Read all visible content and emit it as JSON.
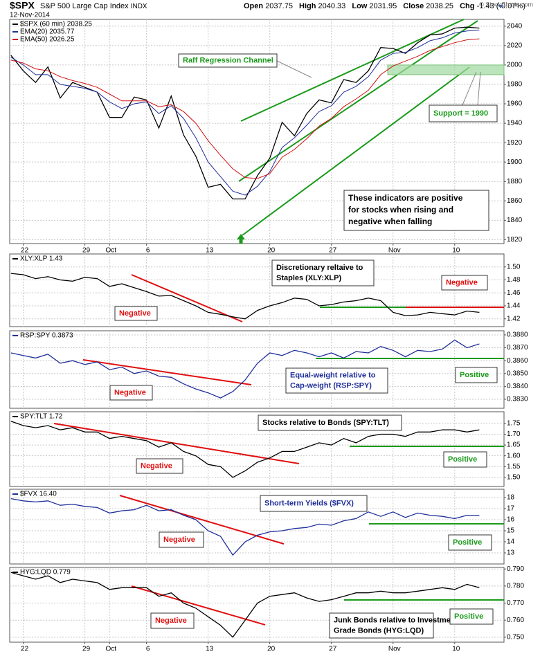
{
  "header": {
    "symbol": "$SPX",
    "name": "S&P 500 Large Cap Index",
    "exchange": "INDX",
    "date": "12-Nov-2014",
    "stats": [
      {
        "label": "Open",
        "value": 2037.75
      },
      {
        "label": "High",
        "value": 2040.33
      },
      {
        "label": "Low",
        "value": 2031.95
      },
      {
        "label": "Close",
        "value": 2038.25
      },
      {
        "label": "Chg",
        "value": "-1.43 (-0.07%)"
      }
    ],
    "credit": "© StockCharts.com"
  },
  "chart_data": [
    {
      "type": "line",
      "x": [
        -1,
        0,
        1,
        2,
        3,
        4,
        5,
        6,
        7,
        8,
        9,
        10,
        11,
        12,
        13,
        14,
        15,
        16,
        17,
        18,
        19,
        20,
        21,
        22,
        23,
        24,
        25,
        26,
        27,
        28,
        29,
        30,
        31,
        32,
        33,
        34,
        35,
        36,
        37
      ],
      "xlim": [
        -1.1,
        39
      ],
      "xticks": [
        {
          "value": 0,
          "label": "22"
        },
        {
          "value": 5,
          "label": "29"
        },
        {
          "value": 7,
          "label": "Oct"
        },
        {
          "value": 10,
          "label": "6"
        },
        {
          "value": 15,
          "label": "13"
        },
        {
          "value": 20,
          "label": "20"
        },
        {
          "value": 25,
          "label": "27"
        },
        {
          "value": 30,
          "label": "Nov"
        },
        {
          "value": 35,
          "label": "10"
        }
      ],
      "ylim": [
        1816,
        2047
      ],
      "yticks": [
        1820,
        1840,
        1860,
        1880,
        1900,
        1920,
        1940,
        1960,
        1980,
        2000,
        2020,
        2040
      ],
      "grid": true,
      "series": [
        {
          "name": "$SPX (60 min) 2038.25",
          "color": "#000000",
          "values": [
            2010,
            1994,
            1982,
            1998,
            1966,
            1982,
            1977,
            1972,
            1946,
            1946,
            1967,
            1964,
            1935,
            1968,
            1928,
            1906,
            1874,
            1877,
            1862,
            1862,
            1886,
            1904,
            1941,
            1927,
            1950,
            1964,
            1961,
            1985,
            1982,
            1994,
            2018,
            2017,
            2012,
            2023,
            2031,
            2032,
            2038,
            2039,
            2038
          ]
        },
        {
          "name": "EMA(20) 2035.77",
          "color": "#1f2f9a",
          "values": [
            2008,
            2000,
            1990,
            1990,
            1980,
            1978,
            1976,
            1972,
            1962,
            1955,
            1960,
            1962,
            1950,
            1958,
            1945,
            1925,
            1900,
            1885,
            1870,
            1866,
            1875,
            1890,
            1915,
            1925,
            1938,
            1952,
            1958,
            1972,
            1978,
            1988,
            2005,
            2012,
            2013,
            2018,
            2025,
            2028,
            2033,
            2035,
            2036
          ]
        },
        {
          "name": "EMA(50) 2026.25",
          "color": "#d01010",
          "values": [
            2005,
            2002,
            1996,
            1994,
            1988,
            1984,
            1981,
            1977,
            1970,
            1963,
            1963,
            1963,
            1957,
            1959,
            1952,
            1940,
            1922,
            1907,
            1893,
            1884,
            1883,
            1888,
            1905,
            1913,
            1924,
            1937,
            1945,
            1957,
            1965,
            1974,
            1990,
            1999,
            2004,
            2009,
            2015,
            2019,
            2023,
            2026,
            2027
          ]
        }
      ],
      "annotations": [
        [
          "Raff Regression Channel"
        ],
        [
          "Support = 1990"
        ],
        [
          "These indicators are positive",
          "for stocks when rising and",
          "negative when falling"
        ]
      ]
    },
    {
      "type": "line",
      "x": [
        -1,
        0,
        1,
        2,
        3,
        4,
        5,
        6,
        7,
        8,
        9,
        10,
        11,
        12,
        13,
        14,
        15,
        16,
        17,
        18,
        19,
        20,
        21,
        22,
        23,
        24,
        25,
        26,
        27,
        28,
        29,
        30,
        31,
        32,
        33,
        34,
        35,
        36,
        37
      ],
      "xlim": [
        -1.1,
        39
      ],
      "ylim": [
        1.408,
        1.52
      ],
      "yticks": [
        {
          "value": 1.42,
          "label": "1.42"
        },
        {
          "value": 1.44,
          "label": "1.44"
        },
        {
          "value": 1.46,
          "label": "1.46"
        },
        {
          "value": 1.48,
          "label": "1.48"
        },
        {
          "value": 1.5,
          "label": "1.50"
        }
      ],
      "grid": true,
      "series": [
        {
          "name": "XLY:XLP 1.43",
          "color": "#000000",
          "values": [
            1.49,
            1.488,
            1.482,
            1.485,
            1.48,
            1.478,
            1.484,
            1.482,
            1.47,
            1.474,
            1.468,
            1.462,
            1.455,
            1.456,
            1.448,
            1.44,
            1.43,
            1.427,
            1.423,
            1.42,
            1.433,
            1.44,
            1.445,
            1.452,
            1.45,
            1.44,
            1.442,
            1.446,
            1.448,
            1.452,
            1.448,
            1.43,
            1.425,
            1.426,
            1.43,
            1.428,
            1.426,
            1.432,
            1.43
          ]
        }
      ],
      "annotations": [
        [
          "Negative"
        ],
        [
          "Discretionary reltaive to",
          "Staples (XLY:XLP)"
        ],
        [
          "Negative"
        ]
      ]
    },
    {
      "type": "line",
      "x": [
        -1,
        0,
        1,
        2,
        3,
        4,
        5,
        6,
        7,
        8,
        9,
        10,
        11,
        12,
        13,
        14,
        15,
        16,
        17,
        18,
        19,
        20,
        21,
        22,
        23,
        24,
        25,
        26,
        27,
        28,
        29,
        30,
        31,
        32,
        33,
        34,
        35,
        36,
        37
      ],
      "xlim": [
        -1.1,
        39
      ],
      "ylim": [
        0.3823,
        0.38832
      ],
      "yticks": [
        {
          "value": 0.383,
          "label": "0.3830"
        },
        {
          "value": 0.384,
          "label": "0.3840"
        },
        {
          "value": 0.385,
          "label": "0.3850"
        },
        {
          "value": 0.386,
          "label": "0.3860"
        },
        {
          "value": 0.387,
          "label": "0.3870"
        },
        {
          "value": 0.388,
          "label": "0.3880"
        }
      ],
      "grid": true,
      "series": [
        {
          "name": "RSP:SPY 0.3873",
          "color": "#1f2f9a",
          "values": [
            0.3866,
            0.3864,
            0.3862,
            0.3865,
            0.3858,
            0.386,
            0.3857,
            0.3859,
            0.3853,
            0.3855,
            0.385,
            0.3852,
            0.3848,
            0.3847,
            0.3842,
            0.3838,
            0.3835,
            0.3831,
            0.3836,
            0.3845,
            0.3858,
            0.3866,
            0.3864,
            0.3868,
            0.3866,
            0.3863,
            0.3866,
            0.3862,
            0.3867,
            0.3866,
            0.3871,
            0.3868,
            0.3863,
            0.3868,
            0.3867,
            0.3869,
            0.3876,
            0.387,
            0.3873
          ]
        }
      ],
      "annotations": [
        [
          "Negative"
        ],
        [
          "Equal-weight relative to",
          "Cap-weight (RSP:SPY)"
        ],
        [
          "Positive"
        ]
      ]
    },
    {
      "type": "line",
      "x": [
        -1,
        0,
        1,
        2,
        3,
        4,
        5,
        6,
        7,
        8,
        9,
        10,
        11,
        12,
        13,
        14,
        15,
        16,
        17,
        18,
        19,
        20,
        21,
        22,
        23,
        24,
        25,
        26,
        27,
        28,
        29,
        30,
        31,
        32,
        33,
        34,
        35,
        36,
        37
      ],
      "xlim": [
        -1.1,
        39
      ],
      "ylim": [
        1.458,
        1.804
      ],
      "yticks": [
        {
          "value": 1.5,
          "label": "1.50"
        },
        1.55,
        {
          "value": 1.6,
          "label": "1.60"
        },
        1.65,
        {
          "value": 1.7,
          "label": "1.70"
        },
        1.75
      ],
      "grid": true,
      "series": [
        {
          "name": "SPY:TLT 1.72",
          "color": "#000000",
          "values": [
            1.76,
            1.74,
            1.73,
            1.74,
            1.72,
            1.73,
            1.71,
            1.71,
            1.68,
            1.69,
            1.68,
            1.67,
            1.64,
            1.66,
            1.62,
            1.6,
            1.56,
            1.55,
            1.5,
            1.53,
            1.57,
            1.59,
            1.62,
            1.62,
            1.64,
            1.66,
            1.65,
            1.68,
            1.66,
            1.69,
            1.7,
            1.7,
            1.69,
            1.71,
            1.71,
            1.72,
            1.72,
            1.71,
            1.72
          ]
        }
      ],
      "annotations": [
        [
          "Stocks relative to Bonds (SPY:TLT)"
        ],
        [
          "Negative"
        ],
        [
          "Positive"
        ]
      ]
    },
    {
      "type": "line",
      "x": [
        -1,
        0,
        1,
        2,
        3,
        4,
        5,
        6,
        7,
        8,
        9,
        10,
        11,
        12,
        13,
        14,
        15,
        16,
        17,
        18,
        19,
        20,
        21,
        22,
        23,
        24,
        25,
        26,
        27,
        28,
        29,
        30,
        31,
        32,
        33,
        34,
        35,
        36,
        37
      ],
      "xlim": [
        -1.1,
        39
      ],
      "ylim": [
        12.0,
        18.75
      ],
      "yticks": [
        13,
        14,
        15,
        16,
        17,
        18
      ],
      "grid": true,
      "series": [
        {
          "name": "$FVX 16.40",
          "color": "#1f2f9a",
          "values": [
            17.9,
            17.7,
            17.6,
            17.7,
            17.3,
            17.4,
            17.2,
            17.1,
            16.6,
            16.8,
            16.9,
            17.3,
            16.8,
            16.9,
            16.4,
            16.0,
            15.0,
            14.5,
            12.8,
            14.0,
            14.6,
            14.9,
            15.0,
            15.2,
            15.3,
            15.6,
            15.5,
            15.9,
            16.1,
            16.7,
            16.3,
            16.7,
            16.2,
            16.6,
            16.4,
            16.3,
            16.1,
            16.4,
            16.4
          ]
        }
      ],
      "annotations": [
        [
          "Short-term Yields ($FVX)"
        ],
        [
          "Negative"
        ],
        [
          "Positive"
        ]
      ]
    },
    {
      "type": "line",
      "x": [
        -1,
        0,
        1,
        2,
        3,
        4,
        5,
        6,
        7,
        8,
        9,
        10,
        11,
        12,
        13,
        14,
        15,
        16,
        17,
        18,
        19,
        20,
        21,
        22,
        23,
        24,
        25,
        26,
        27,
        28,
        29,
        30,
        31,
        32,
        33,
        34,
        35,
        36,
        37
      ],
      "xlim": [
        -1.1,
        39
      ],
      "ylim": [
        0.7471,
        0.7909
      ],
      "xticks": [
        {
          "value": 0,
          "label": "22"
        },
        {
          "value": 5,
          "label": "29"
        },
        {
          "value": 7,
          "label": "Oct"
        },
        {
          "value": 10,
          "label": "6"
        },
        {
          "value": 15,
          "label": "13"
        },
        {
          "value": 20,
          "label": "20"
        },
        {
          "value": 25,
          "label": "27"
        },
        {
          "value": 30,
          "label": "Nov"
        },
        {
          "value": 35,
          "label": "10"
        }
      ],
      "yticks": [
        {
          "value": 0.75,
          "label": "0.750"
        },
        {
          "value": 0.76,
          "label": "0.760"
        },
        {
          "value": 0.77,
          "label": "0.770"
        },
        {
          "value": 0.78,
          "label": "0.780"
        },
        {
          "value": 0.79,
          "label": "0.790"
        }
      ],
      "grid": true,
      "series": [
        {
          "name": "HYG:LQD 0.779",
          "color": "#000000",
          "values": [
            0.788,
            0.786,
            0.784,
            0.786,
            0.782,
            0.784,
            0.783,
            0.782,
            0.778,
            0.779,
            0.779,
            0.779,
            0.774,
            0.776,
            0.77,
            0.767,
            0.762,
            0.757,
            0.75,
            0.76,
            0.77,
            0.774,
            0.775,
            0.776,
            0.773,
            0.771,
            0.772,
            0.774,
            0.776,
            0.776,
            0.777,
            0.776,
            0.776,
            0.777,
            0.778,
            0.779,
            0.778,
            0.781,
            0.779
          ]
        }
      ],
      "annotations": [
        [
          "Negative"
        ],
        [
          "Junk Bonds relative to Investment",
          "Grade Bonds (HYG:LQD)"
        ],
        [
          "Positive"
        ]
      ]
    }
  ]
}
